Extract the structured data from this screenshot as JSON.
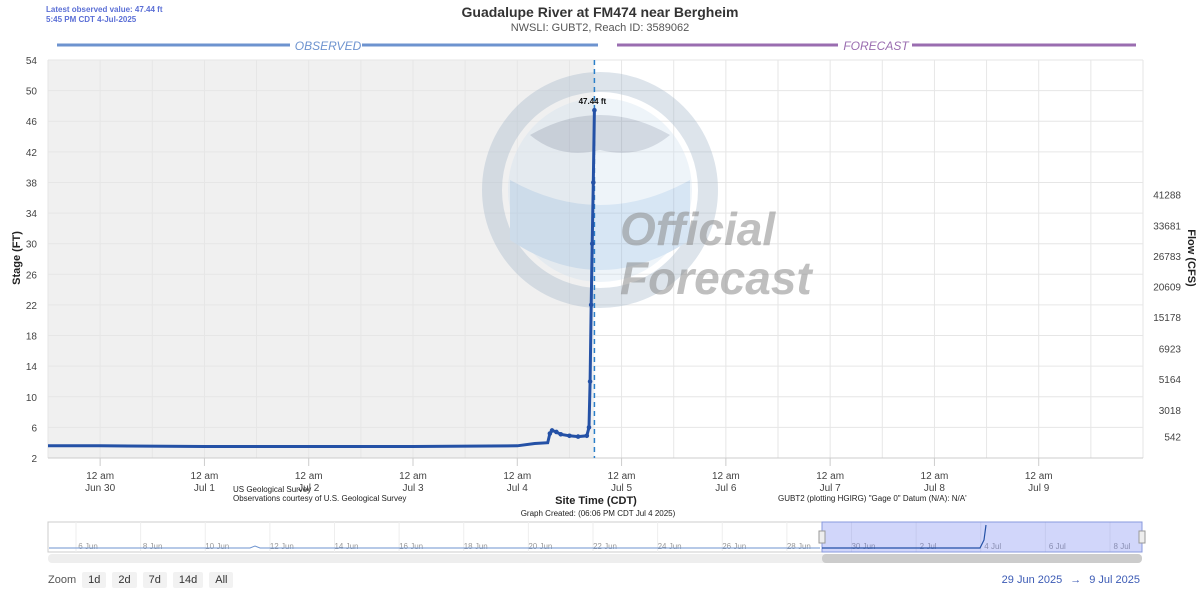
{
  "header": {
    "latest_line1": "Latest observed value: 47.44 ft",
    "latest_line2": "5:45 PM CDT 4-Jul-2025",
    "title": "Guadalupe River at FM474 near Bergheim",
    "subtitle": "NWSLI: GUBT2, Reach ID: 3589062"
  },
  "sections": {
    "observed": "OBSERVED",
    "forecast": "FORECAST"
  },
  "watermark": {
    "official": "Official",
    "forecast": "Forecast",
    "logo": "noaa-logo-icon"
  },
  "footer": {
    "usgs_line1": "US Geological Survey",
    "usgs_line2": "Observations courtesy of U.S. Geological Survey",
    "site_time": "Site Time (CDT)",
    "graph_created": "Graph Created: (06:06 PM CDT Jul 4 2025)",
    "datum": "GUBT2 (plotting HGIRG) \"Gage 0\" Datum (N/A): N/A'"
  },
  "zoom": {
    "label": "Zoom",
    "buttons": [
      "1d",
      "2d",
      "7d",
      "14d",
      "All"
    ]
  },
  "range": {
    "from": "29 Jun 2025",
    "arrow": "→",
    "to": "9 Jul 2025"
  },
  "navigator": {
    "labels": [
      "6 Jun",
      "8 Jun",
      "10 Jun",
      "12 Jun",
      "14 Jun",
      "16 Jun",
      "18 Jun",
      "20 Jun",
      "22 Jun",
      "24 Jun",
      "26 Jun",
      "28 Jun",
      "30 Jun",
      "2 Jul",
      "4 Jul",
      "6 Jul",
      "8 Jul"
    ]
  },
  "chart_data": {
    "type": "line",
    "title": "Guadalupe River at FM474 near Bergheim",
    "xlabel": "Site Time (CDT)",
    "ylabel": "Stage (FT)",
    "y2label": "Flow (CFS)",
    "ylim": [
      2,
      54
    ],
    "yticks": [
      2,
      6,
      10,
      14,
      18,
      22,
      26,
      30,
      34,
      38,
      42,
      46,
      50,
      54
    ],
    "flow_ticks": [
      {
        "stage": 4.8,
        "label": "542"
      },
      {
        "stage": 8.3,
        "label": "3018"
      },
      {
        "stage": 12.3,
        "label": "5164"
      },
      {
        "stage": 16.3,
        "label": "6923"
      },
      {
        "stage": 20.4,
        "label": "15178"
      },
      {
        "stage": 24.4,
        "label": "20609"
      },
      {
        "stage": 28.4,
        "label": "26783"
      },
      {
        "stage": 32.4,
        "label": "33681"
      },
      {
        "stage": 36.4,
        "label": "41288"
      }
    ],
    "xlim_hours": [
      -12,
      240
    ],
    "xtick_hours": [
      0,
      24,
      48,
      72,
      96,
      120,
      144,
      168,
      192,
      216
    ],
    "xtick_labels": [
      [
        "12 am",
        "Jun 30"
      ],
      [
        "12 am",
        "Jul 1"
      ],
      [
        "12 am",
        "Jul 2"
      ],
      [
        "12 am",
        "Jul 3"
      ],
      [
        "12 am",
        "Jul 4"
      ],
      [
        "12 am",
        "Jul 5"
      ],
      [
        "12 am",
        "Jul 6"
      ],
      [
        "12 am",
        "Jul 7"
      ],
      [
        "12 am",
        "Jul 8"
      ],
      [
        "12 am",
        "Jul 9"
      ]
    ],
    "forecast_start_hours": 113.75,
    "peak_label": "47.44 ft",
    "series": [
      {
        "name": "Observed Stage",
        "color": "#2451a6",
        "x": [
          -12,
          0,
          24,
          48,
          72,
          96,
          100,
          103,
          103.5,
          104,
          105,
          106,
          108,
          110,
          112,
          112.5,
          112.75,
          113,
          113.25,
          113.5,
          113.75
        ],
        "y": [
          3.6,
          3.6,
          3.5,
          3.5,
          3.5,
          3.6,
          3.9,
          4.0,
          5.2,
          5.6,
          5.4,
          5.1,
          4.9,
          4.8,
          4.9,
          6.0,
          12.0,
          22.0,
          30.0,
          38.0,
          47.44
        ]
      }
    ],
    "grid": true
  }
}
